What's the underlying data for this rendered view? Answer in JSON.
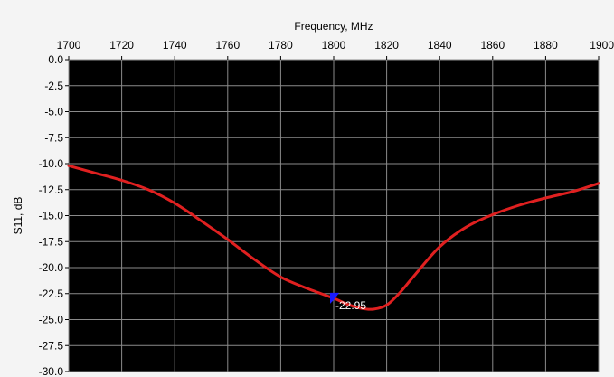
{
  "chart_data": {
    "type": "line",
    "title": "",
    "xlabel": "Frequency, MHz",
    "ylabel": "S11, dB",
    "xlim": [
      1700,
      1900
    ],
    "ylim": [
      -30.0,
      0.0
    ],
    "x_ticks": [
      "1700",
      "1720",
      "1740",
      "1760",
      "1780",
      "1800",
      "1820",
      "1840",
      "1860",
      "1880",
      "1900"
    ],
    "x_tick_values": [
      1700,
      1720,
      1740,
      1760,
      1780,
      1800,
      1820,
      1840,
      1860,
      1880,
      1900
    ],
    "y_ticks": [
      "0.0",
      "-2.5",
      "-5.0",
      "-7.5",
      "-10.0",
      "-12.5",
      "-15.0",
      "-17.5",
      "-20.0",
      "-22.5",
      "-25.0",
      "-27.5",
      "-30.0"
    ],
    "y_tick_values": [
      0,
      -2.5,
      -5,
      -7.5,
      -10,
      -12.5,
      -15,
      -17.5,
      -20,
      -22.5,
      -25,
      -27.5,
      -30
    ],
    "grid": true,
    "background": "#000000",
    "series": [
      {
        "color": "#e02020",
        "x": [
          1700,
          1710,
          1720,
          1730,
          1740,
          1750,
          1760,
          1770,
          1780,
          1790,
          1800,
          1805,
          1810,
          1815,
          1820,
          1825,
          1830,
          1840,
          1850,
          1860,
          1870,
          1880,
          1890,
          1900
        ],
        "y": [
          -10.2,
          -10.9,
          -11.6,
          -12.5,
          -13.8,
          -15.5,
          -17.3,
          -19.2,
          -20.9,
          -22.0,
          -22.95,
          -23.5,
          -23.9,
          -24.0,
          -23.6,
          -22.4,
          -20.9,
          -18.0,
          -16.1,
          -14.9,
          -14.0,
          -13.3,
          -12.7,
          -11.9
        ]
      }
    ],
    "marker": {
      "x": 1800,
      "y": -22.95,
      "label": "-22.95",
      "color": "#1a1aff"
    }
  }
}
